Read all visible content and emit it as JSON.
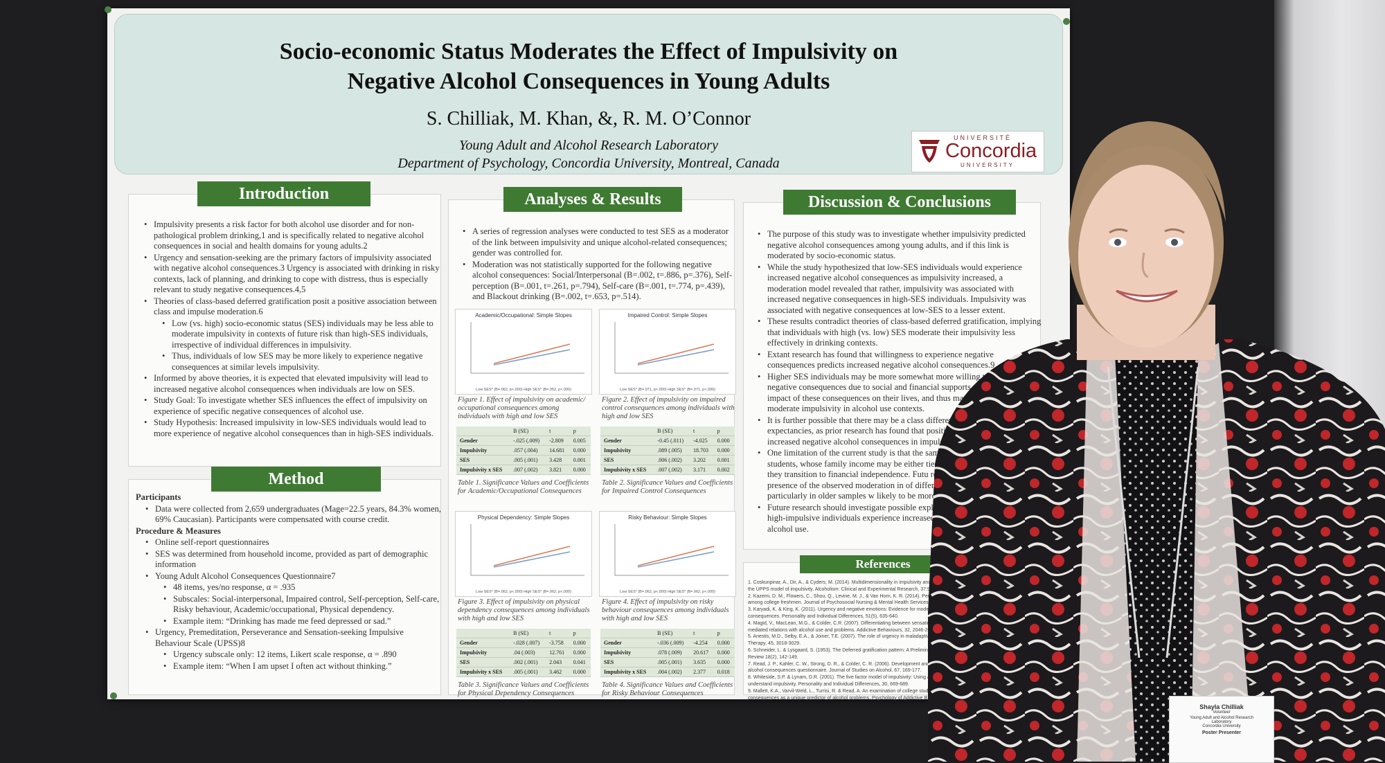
{
  "poster": {
    "title": [
      "Socio-economic Status Moderates the Effect of Impulsivity on",
      "Negative Alcohol Consequences in Young Adults"
    ],
    "authors": "S. Chilliak, M. Khan, &, R. M. O’Connor",
    "affiliations": [
      "Young Adult and Alcohol Research Laboratory",
      "Department of Psychology, Concordia University, Montreal, Canada"
    ],
    "logo": {
      "top": "UNIVERSITÉ",
      "name": "Concordia",
      "bottom": "UNIVERSITY",
      "color": "#8a1f24"
    }
  },
  "sections": {
    "introduction": {
      "title": "Introduction",
      "items": [
        {
          "t": "Impulsivity presents a risk factor for both alcohol use disorder and for non-pathological problem drinking,1 and is specifically related to negative alcohol consequences in social and health domains for young adults.2"
        },
        {
          "t": "Urgency and sensation-seeking are the primary factors of impulsivity associated with negative alcohol consequences.3 Urgency is associated with drinking in risky contexts, lack of planning, and drinking to cope with distress, thus is especially relevant to study negative consequences.4,5"
        },
        {
          "t": "Theories of class-based deferred gratification posit a positive association between class and impulse moderation.6"
        },
        {
          "t": "Low (vs. high) socio-economic status (SES) individuals may be less able to moderate impulsivity in contexts of future risk than high-SES individuals, irrespective of individual differences in impulsivity.",
          "sub": true
        },
        {
          "t": "Thus, individuals of low SES may be more likely to experience negative consequences at similar levels impulsivity.",
          "sub": true
        },
        {
          "t": "Informed by above theories, it is expected that elevated impulsivity will lead to increased negative alcohol consequences when individuals are low on SES."
        },
        {
          "t": "Study Goal: To investigate whether SES influences the effect of impulsivity on experience of specific negative consequences of alcohol use."
        },
        {
          "t": "Study Hypothesis: Increased impulsivity in low-SES individuals would lead to more experience of negative alcohol consequences than in high-SES individuals."
        }
      ]
    },
    "method": {
      "title": "Method",
      "items": [
        {
          "t": "Participants",
          "head": true
        },
        {
          "t": "Data were collected from 2,659 undergraduates (Mage=22.5 years, 84.3% women, 69% Caucasian). Participants were compensated with course credit."
        },
        {
          "t": "Procedure & Measures",
          "head": true
        },
        {
          "t": "Online self-report questionnaires"
        },
        {
          "t": "SES was determined from household income, provided as part of demographic information"
        },
        {
          "t": "Young Adult Alcohol Consequences Questionnaire7"
        },
        {
          "t": "48 items, yes/no response, α = .935",
          "sub": true
        },
        {
          "t": "Subscales: Social-interpersonal, Impaired control, Self-perception, Self-care, Risky behaviour, Academic/occupational, Physical dependency.",
          "sub": true
        },
        {
          "t": "Example item: “Drinking has made me feed depressed or sad.”",
          "sub": true
        },
        {
          "t": "Urgency, Premeditation, Perseverance and Sensation-seeking Impulsive Behaviour Scale (UPSS)8"
        },
        {
          "t": "Urgency subscale only: 12 items, Likert scale response, α = .890",
          "sub": true
        },
        {
          "t": "Example item: “When I am upset I often act without thinking.”",
          "sub": true
        }
      ]
    },
    "analyses": {
      "title": "Analyses & Results",
      "items": [
        {
          "t": "A series of regression analyses were conducted to test SES as a moderator of the link between impulsivity and unique alcohol-related consequences; gender was controlled for."
        },
        {
          "t": "Moderation was not statistically supported for the following negative alcohol consequences: Social/Interpersonal (B=.002, t=.886, p=.376), Self-perception (B=.001, t=.261, p=.794), Self-care (B=.001, t=.774, p=.439), and Blackout drinking (B=.002, t=.653, p=.514)."
        }
      ]
    },
    "discussion": {
      "title": "Discussion & Conclusions",
      "items": [
        {
          "t": "The purpose of this study was to investigate whether impulsivity predicted negative alcohol consequences among young adults, and if this link is moderated by socio-economic status."
        },
        {
          "t": "While the study hypothesized that low-SES individuals would experience increased negative alcohol consequences as impulsivity increased, a moderation model revealed that rather, impulsivity was associated with increased negative consequences in high-SES individuals. Impulsivity was associated with negative consequences at low-SES to a lesser extent."
        },
        {
          "t": "These results contradict theories of class-based deferred gratification, implying that individuals with high (vs. low) SES moderate their impulsivity less effectively in drinking contexts."
        },
        {
          "t": "Extant research has found that willingness to experience negative consequences predicts increased negative alcohol consequences.9"
        },
        {
          "t": "Higher SES individuals may be more somewhat more willing to experience negative consequences due to social and financial supports which mitigate the impact of these consequences on their lives, and thus may be less motivated to moderate impulsivity in alcohol use contexts."
        },
        {
          "t": "It is further possible that there may be a class difference in alcohol expectancies, as prior research has found that positive alcohol expecta lead to increased negative alcohol consequences in impulsive individ"
        },
        {
          "t": "One limitation of the current study is that the sample comprised only university students, whose family income may be either tied to that parents, or in flux as they transition to financial independence. Futu research should test for the presence of the observed moderation in of different ages and occupations, particularly in older samples w likely to be more stable."
        },
        {
          "t": "Future research should investigate possible explanatory models f SES and high-impulsive individuals experience increased negati consequences of alcohol use."
        }
      ]
    },
    "references": {
      "title": "References",
      "items": [
        "1. Coskunpinar, A., Dir, A., & Cyders, M. (2014). Multidimensionality in impulsivity and alcohol use: A Meta-a",
        "the UPPS model of impulsivity. Alcoholism: Clinical and Experimental Research, 37:9, 2013.",
        "2. Kazemi, D. M., Flowers, C., Shou, Q., Levine, M. J., & Van Horn, K. R. (2014). Personality risk for alco",
        "among college freshmen. Journal of Psychosocial Nursing & Mental Health Services, 52(7), 38",
        "3. Karyadi, K. & King, K. (2011). Urgency and negative emotions: Evidence for moderation on negative",
        "consequences. Personality and Individual Differences, 51(5), 635-640.",
        "4. Magid, V., MacLean, M.G., & Colder, C.R. (2007). Differentiating between sensation seeking and imp",
        "mediated relations with alcohol use and problems. Addictive Behaviours, 32, 2046-2061.",
        "5. Anestis, M.D., Selby, E.A., & Joiner, T.E. (2007). The role of urgency in maladaptive behaviours. Be",
        "Therapy, 45, 3018-3029.",
        "6. Schneider, L. & Lysgaard, S. (1953). The Deferred gratification pattern: A Preliminary study. Ame",
        "Review 18(2), 142-149.",
        "7. Read, J. P., Kahler, C. W., Strong, D. R., & Colder, C. R. (2006). Development and preliminary v",
        "alcohol consequences questionnaire. Journal of Studies on Alcohol, 67, 169-177.",
        "8. Whiteside, S.P. & Lynam, D.R. (2001). The five factor model of impulsivity: Using a structural m",
        "understand impulsivity. Personality and Individual Differences, 30, 669-689.",
        "9. Mallett, K.A., Varvil-Weld, L., Turrisi, R. & Read, A. An examination of college students' willi",
        "consequences as a unique predictor of alcohol problems. Psychology of Addictive B"
      ]
    }
  },
  "figures": [
    {
      "title": "Academic/Occupational: Simple Slopes",
      "caption": "Figure 1. Effect of impulsivity on academic/ occupational consequences among individuals with high and low SES",
      "legend": [
        "Low SES* (B=.062, p<.000)",
        "High SES* (B=.052, p<.000)"
      ]
    },
    {
      "title": "Impaired Control: Simple Slopes",
      "caption": "Figure 2. Effect of impulsivity on impaired control consequences among individuals with high and low SES",
      "legend": [
        "Low SES* (B=.071, p<.000)",
        "High SES* (B=.071, p<.000)"
      ]
    },
    {
      "title": "Physical Dependency: Simple Slopes",
      "caption": "Figure 3. Effect of impulsivity on physical dependency consequences among individuals with high and low SES",
      "legend": [
        "Low SES* (B=.062, p<.000)",
        "High SES* (B=.062, p<.000)"
      ]
    },
    {
      "title": "Risky Behaviour: Simple Slopes",
      "caption": "Figure 4. Effect of impulsivity on risky behaviour consequences among individuals with high and low SES",
      "legend": [
        "Low SES* (B=.062, p<.000)",
        "High SES* (B=.062, p<.000)"
      ]
    }
  ],
  "tables": [
    {
      "caption": "Table 1. Significance Values and Coefficients for Academic/Occupational Consequences",
      "header": [
        "",
        "B (SE)",
        "t",
        "p"
      ],
      "rows": [
        [
          "Gender",
          "-.025 (.009)",
          "-2.809",
          "0.005"
        ],
        [
          "Impulsivity",
          ".057 (.004)",
          "14.681",
          "0.000"
        ],
        [
          "SES",
          ".005 (.001)",
          "3.428",
          "0.001"
        ],
        [
          "Impulsivity x SES",
          ".007 (.002)",
          "3.821",
          "0.000"
        ]
      ]
    },
    {
      "caption": "Table 2. Significance Values and Coefficients for Impaired Control Consequences",
      "header": [
        "",
        "B (SE)",
        "t",
        "p"
      ],
      "rows": [
        [
          "Gender",
          "-0.45 (.011)",
          "-4.025",
          "0.000"
        ],
        [
          "Impulsivity",
          ".089 (.005)",
          "18.703",
          "0.000"
        ],
        [
          "SES",
          ".006 (.002)",
          "3.202",
          "0.001"
        ],
        [
          "Impulsivity x SES",
          ".007 (.002)",
          "3.171",
          "0.002"
        ]
      ]
    },
    {
      "caption": "Table 3. Significance Values and Coefficients for Physical Dependency Consequences",
      "header": [
        "",
        "B (SE)",
        "t",
        "p"
      ],
      "rows": [
        [
          "Gender",
          "-.028 (.007)",
          "-3.758",
          "0.000"
        ],
        [
          "Impulsivity",
          ".04 (.003)",
          "12.761",
          "0.000"
        ],
        [
          "SES",
          ".002 (.001)",
          "2.043",
          "0.041"
        ],
        [
          "Impulsivity x SES",
          ".005 (.001)",
          "3.462",
          "0.000"
        ]
      ]
    },
    {
      "caption": "Table 4. Significance Values and Coefficients for Risky Behaviour Consequences",
      "header": [
        "",
        "B (SE)",
        "t",
        "p"
      ],
      "rows": [
        [
          "Gender",
          "-.036 (.009)",
          "-4.254",
          "0.000"
        ],
        [
          "Impulsivity",
          ".078 (.009)",
          "20.617",
          "0.000"
        ],
        [
          "SES",
          ".005 (.001)",
          "3.635",
          "0.000"
        ],
        [
          "Impulsivity x SES",
          ".004 (.002)",
          "2.377",
          "0.018"
        ]
      ]
    }
  ],
  "badge": [
    "Shayla Chilliak",
    "Volunteer",
    "Young Adult and Alcohol Research",
    "Laboratory",
    "Concordia University",
    "Poster Presenter"
  ],
  "colors": {
    "section_green": "#3f7a33",
    "header_bg": "#d6e6e2",
    "wall": "#1e1d1f",
    "sweater_red": "#c0262a"
  }
}
